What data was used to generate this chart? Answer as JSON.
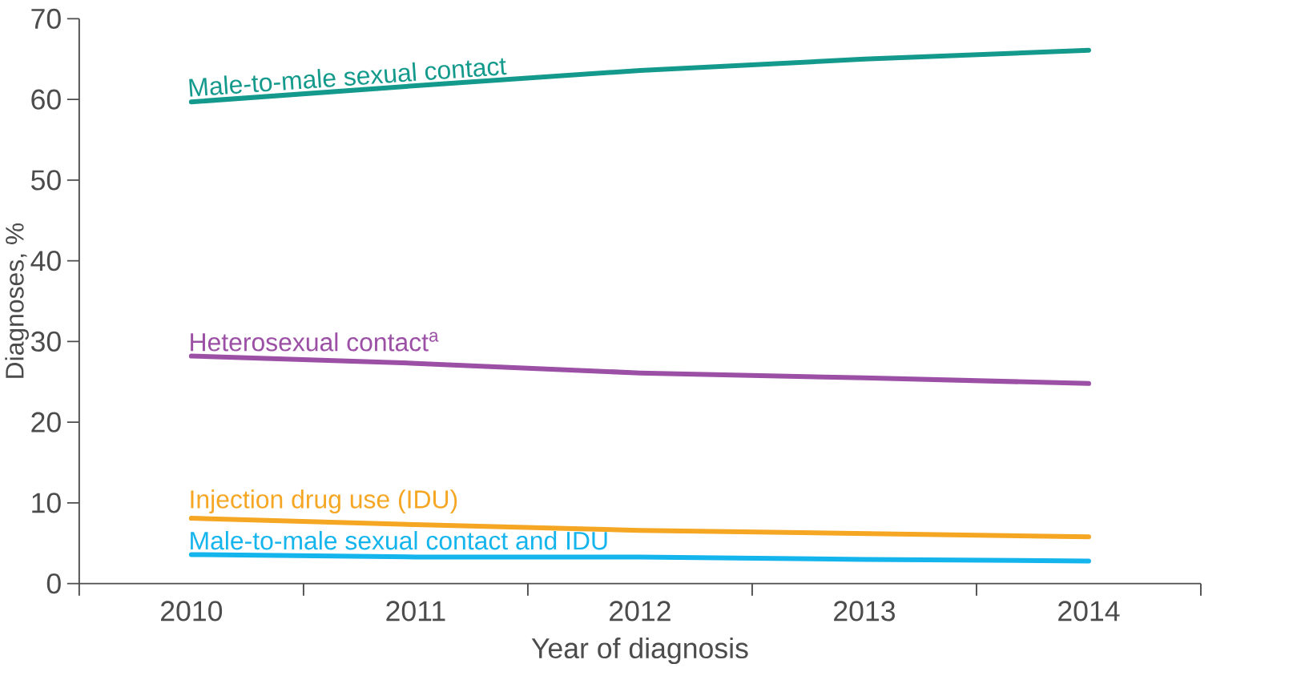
{
  "chart_data": {
    "type": "line",
    "xlabel": "Year of diagnosis",
    "ylabel": "Diagnoses, %",
    "categories": [
      "2010",
      "2011",
      "2012",
      "2013",
      "2014"
    ],
    "ylim": [
      0,
      70
    ],
    "yticks": [
      0,
      10,
      20,
      30,
      40,
      50,
      60,
      70
    ],
    "series": [
      {
        "name": "Male-to-male sexual contact",
        "color": "#149a8c",
        "values": [
          59.7,
          61.7,
          63.6,
          65.0,
          66.1
        ]
      },
      {
        "name": "Heterosexual contact$^{a}$",
        "color": "#9b4fa5",
        "values": [
          28.2,
          27.3,
          26.1,
          25.5,
          24.8
        ]
      },
      {
        "name": "Injection drug use (IDU)",
        "color": "#f5a623",
        "values": [
          8.1,
          7.3,
          6.6,
          6.2,
          5.8
        ]
      },
      {
        "name": "Male-to-male sexual contact and IDU",
        "color": "#14b4ec",
        "values": [
          3.6,
          3.3,
          3.3,
          3.0,
          2.8
        ]
      }
    ]
  }
}
